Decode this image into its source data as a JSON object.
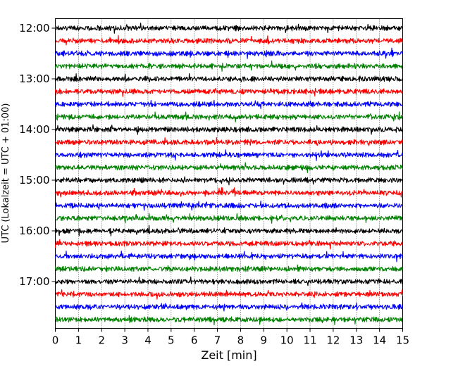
{
  "chart_data": {
    "type": "line",
    "title": "",
    "xlabel": "Zeit  [min]",
    "ylabel": "UTC (Lokalzeit = UTC + 01:00)",
    "xlim": [
      0,
      15
    ],
    "x_ticks": [
      0,
      1,
      2,
      3,
      4,
      5,
      6,
      7,
      8,
      9,
      10,
      11,
      12,
      13,
      14,
      15
    ],
    "y_ticks": [
      "12:00",
      "13:00",
      "14:00",
      "15:00",
      "16:00",
      "17:00"
    ],
    "grid": "vertical dotted",
    "legend": "none",
    "trace_start_times": [
      "12:00",
      "12:15",
      "12:30",
      "12:45",
      "13:00",
      "13:15",
      "13:30",
      "13:45",
      "14:00",
      "14:15",
      "14:30",
      "14:45",
      "15:00",
      "15:15",
      "15:30",
      "15:45",
      "16:00",
      "16:15",
      "16:30",
      "16:45",
      "17:00",
      "17:15",
      "17:30",
      "17:45"
    ],
    "trace_colors": [
      "#000000",
      "#ff0000",
      "#0000ff",
      "#008000"
    ]
  }
}
